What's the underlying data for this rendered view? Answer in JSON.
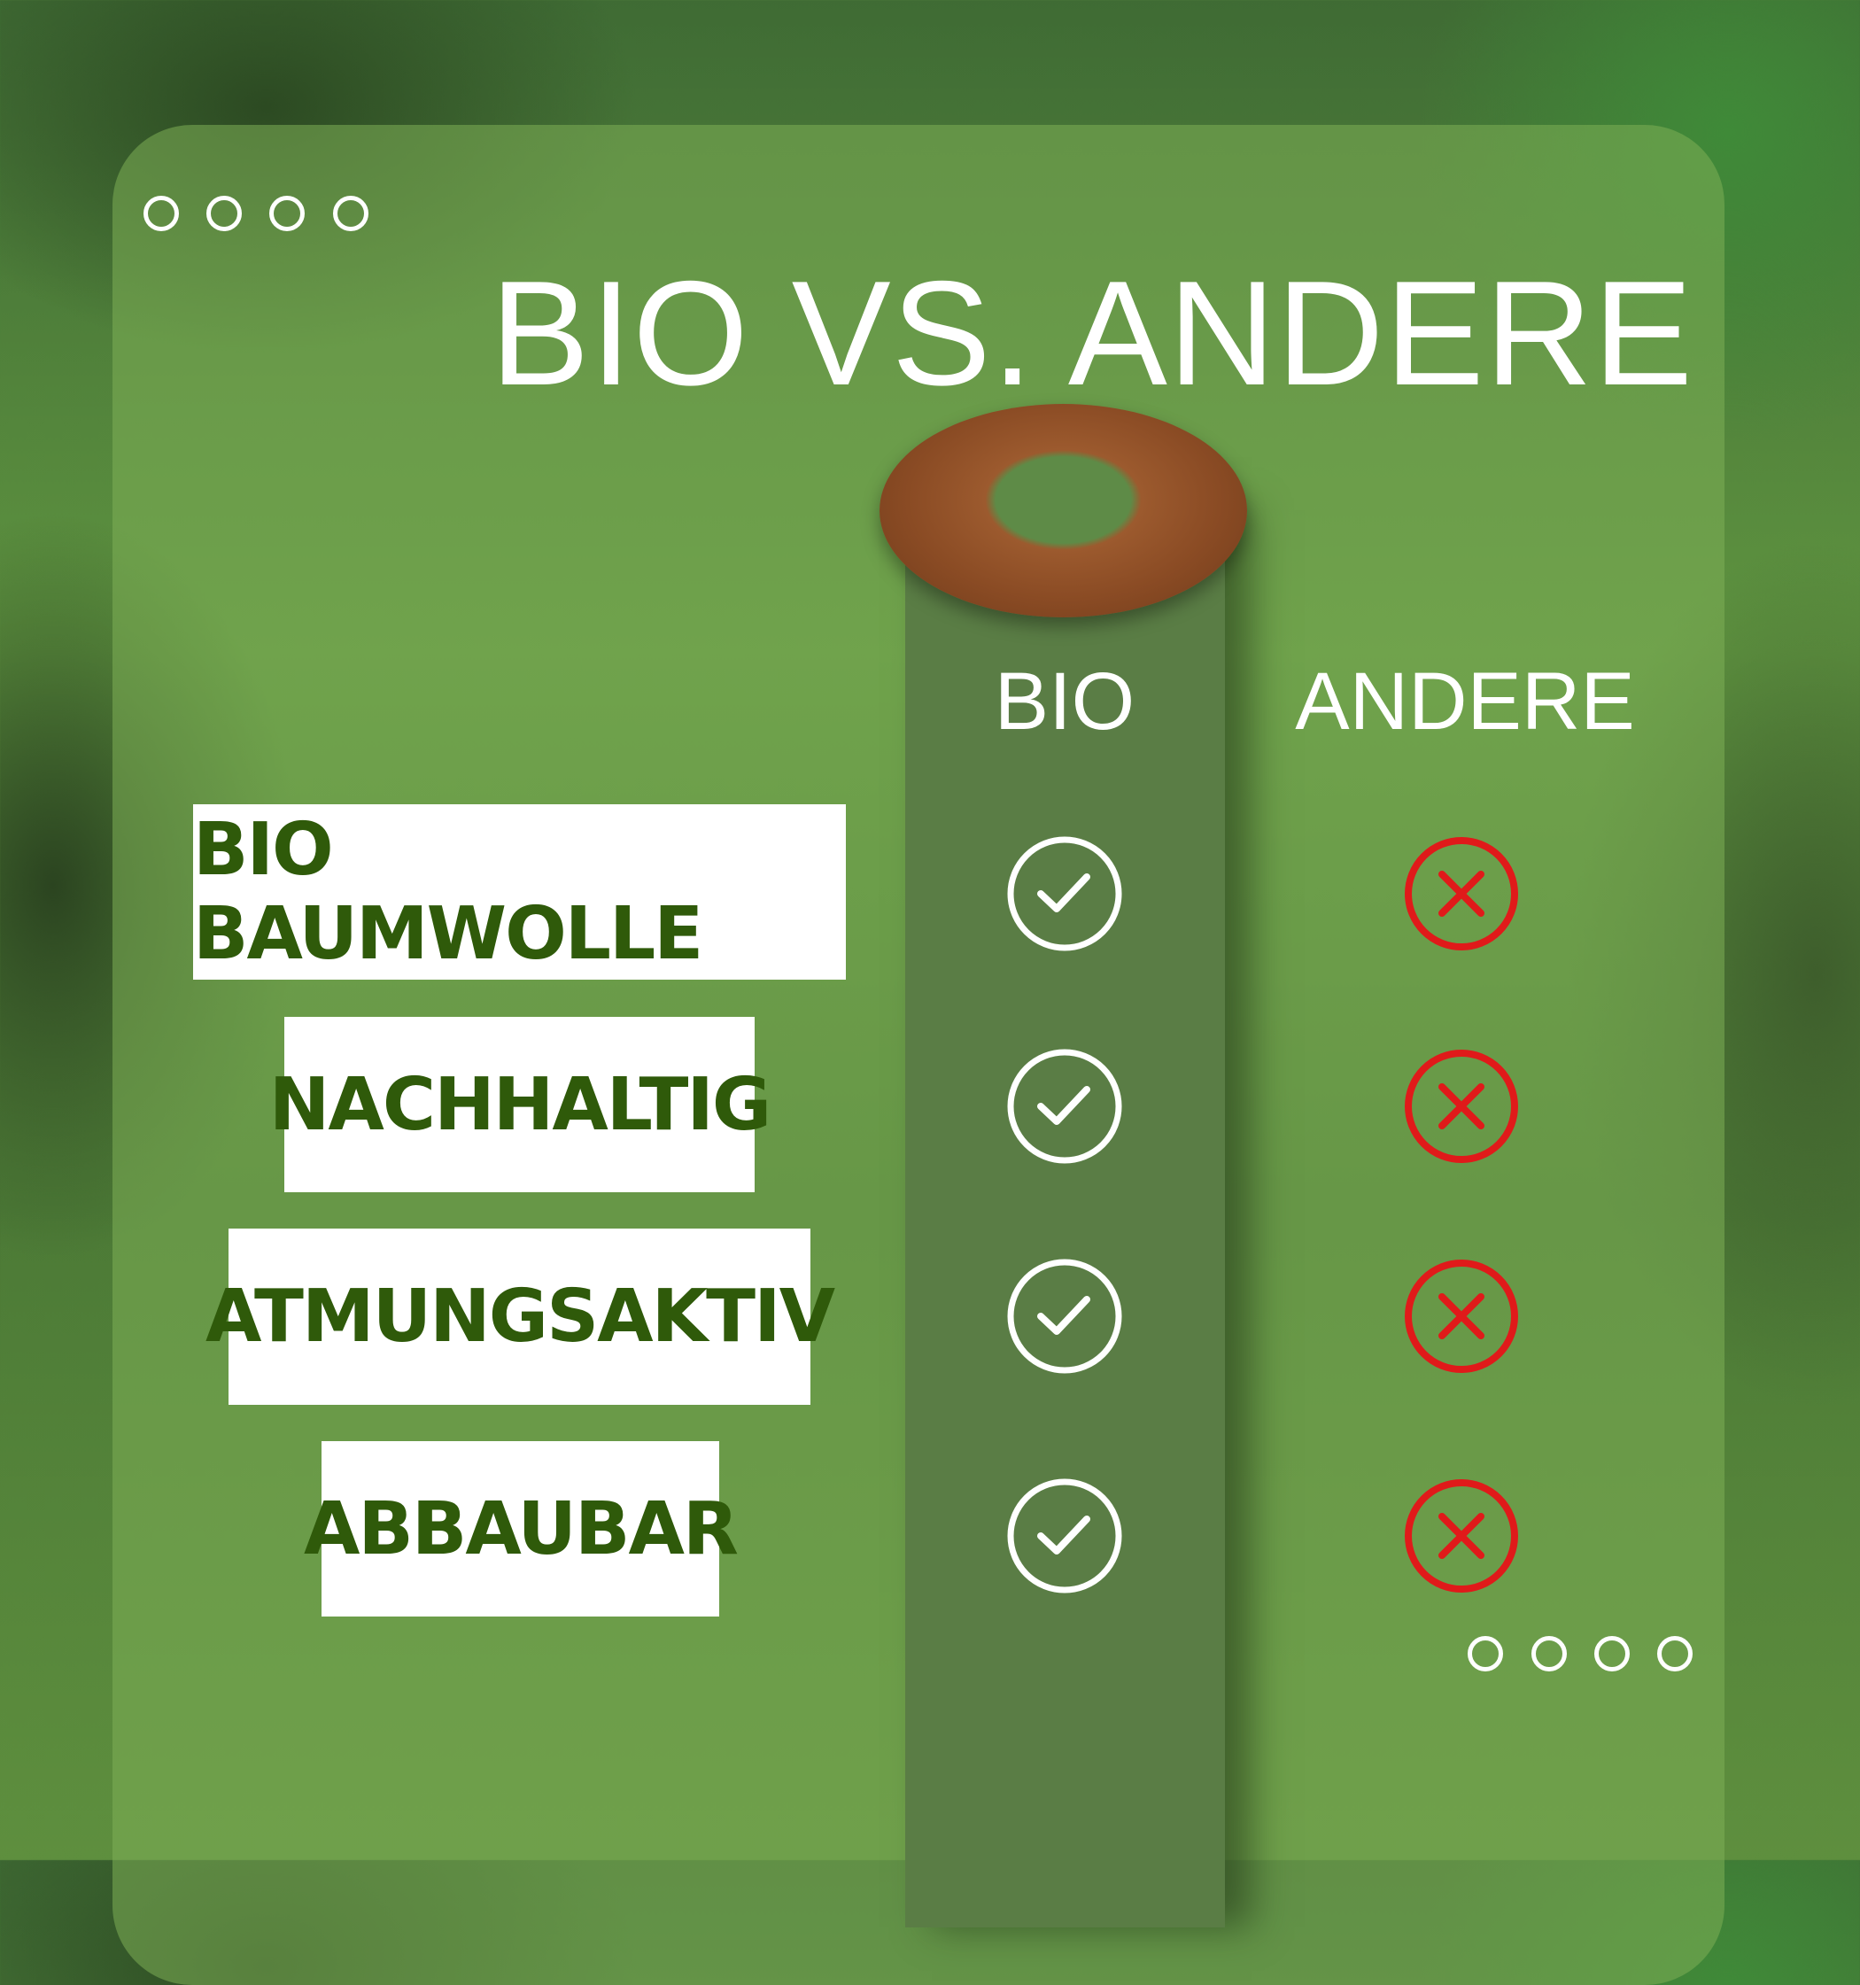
{
  "title": "BIO VS. ANDERE",
  "columns": {
    "bio": "BIO",
    "andere": "ANDERE"
  },
  "rows": [
    {
      "label": "BIO BAUMWOLLE",
      "bio": "check",
      "andere": "cross"
    },
    {
      "label": "NACHHALTIG",
      "bio": "check",
      "andere": "cross"
    },
    {
      "label": "ATMUNGSAKTIV",
      "bio": "check",
      "andere": "cross"
    },
    {
      "label": "ABBAUBAR",
      "bio": "check",
      "andere": "cross"
    }
  ],
  "colors": {
    "label_text": "#2f5a0a",
    "check": "#ffffff",
    "cross": "#e01a1a",
    "column": "#5a7d45"
  }
}
